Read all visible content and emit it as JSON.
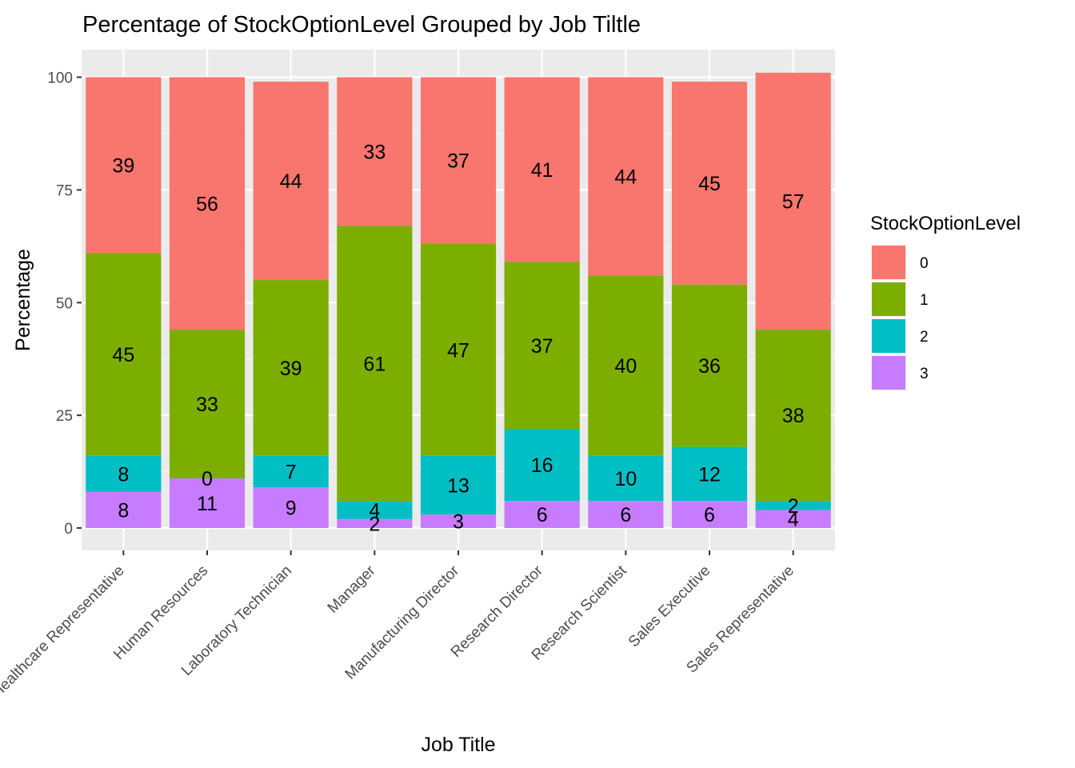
{
  "chart_data": {
    "type": "bar",
    "stacked": true,
    "title": "Percentage of StockOptionLevel Grouped by Job Tiltle",
    "xlabel": "Job Title",
    "ylabel": "Percentage",
    "ylim": [
      0,
      105
    ],
    "yticks": [
      0,
      25,
      50,
      75,
      100
    ],
    "grid": true,
    "legend_position": "right",
    "legend_title": "StockOptionLevel",
    "categories": [
      "Healthcare Representative",
      "Human Resources",
      "Laboratory Technician",
      "Manager",
      "Manufacturing Director",
      "Research Director",
      "Research Scientist",
      "Sales Executive",
      "Sales Representative"
    ],
    "series": [
      {
        "name": "3",
        "color": "#C77CFF",
        "values": [
          8,
          11,
          9,
          2,
          3,
          6,
          6,
          6,
          4
        ]
      },
      {
        "name": "2",
        "color": "#00BFC4",
        "values": [
          8,
          0,
          7,
          4,
          13,
          16,
          10,
          12,
          2
        ]
      },
      {
        "name": "1",
        "color": "#7CAE00",
        "values": [
          45,
          33,
          39,
          61,
          47,
          37,
          40,
          36,
          38
        ]
      },
      {
        "name": "0",
        "color": "#F8766D",
        "values": [
          39,
          56,
          44,
          33,
          37,
          41,
          44,
          45,
          57
        ]
      }
    ],
    "legend_order": [
      "0",
      "1",
      "2",
      "3"
    ]
  }
}
